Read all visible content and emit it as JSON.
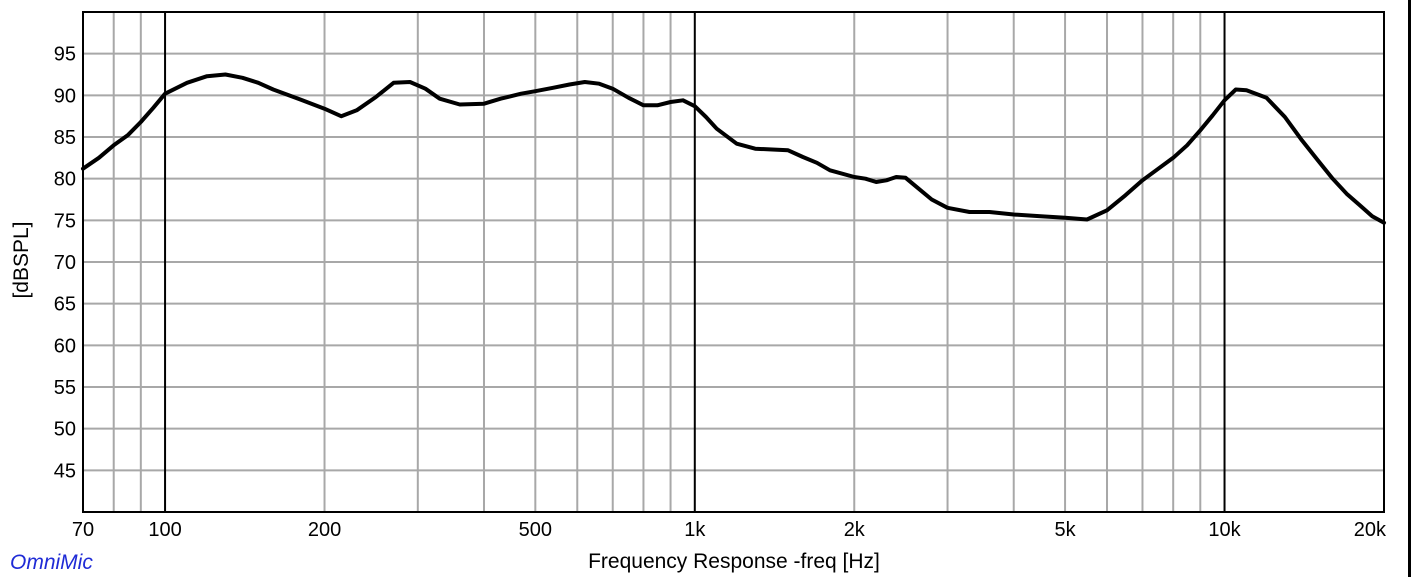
{
  "brand": "OmniMic",
  "chart_data": {
    "type": "line",
    "title": "",
    "xlabel": "Frequency Response -freq [Hz]",
    "ylabel": "[dBSPL]",
    "xscale": "log",
    "xlim": [
      70,
      20000
    ],
    "ylim": [
      40,
      100
    ],
    "grid": true,
    "x_ticks": [
      {
        "value": 70,
        "label": "70"
      },
      {
        "value": 100,
        "label": "100"
      },
      {
        "value": 200,
        "label": "200"
      },
      {
        "value": 500,
        "label": "500"
      },
      {
        "value": 1000,
        "label": "1k"
      },
      {
        "value": 2000,
        "label": "2k"
      },
      {
        "value": 5000,
        "label": "5k"
      },
      {
        "value": 10000,
        "label": "10k"
      },
      {
        "value": 20000,
        "label": "20k"
      }
    ],
    "y_ticks": [
      45,
      50,
      55,
      60,
      65,
      70,
      75,
      80,
      85,
      90,
      95
    ],
    "series": [
      {
        "color": "#000000",
        "x": [
          70,
          75,
          80,
          85,
          90,
          95,
          100,
          110,
          120,
          130,
          140,
          150,
          160,
          180,
          200,
          215,
          230,
          250,
          270,
          290,
          310,
          330,
          360,
          400,
          430,
          470,
          500,
          540,
          580,
          620,
          660,
          700,
          750,
          800,
          850,
          900,
          950,
          1000,
          1050,
          1100,
          1200,
          1300,
          1400,
          1500,
          1600,
          1700,
          1800,
          2000,
          2100,
          2200,
          2300,
          2400,
          2500,
          2600,
          2800,
          3000,
          3300,
          3600,
          4000,
          4500,
          5000,
          5500,
          6000,
          6500,
          7000,
          7500,
          8000,
          8500,
          9000,
          9500,
          10000,
          10500,
          11000,
          12000,
          13000,
          14000,
          15000,
          16000,
          17000,
          18000,
          19000,
          20000
        ],
        "y": [
          81.2,
          82.5,
          84.0,
          85.2,
          86.8,
          88.5,
          90.2,
          91.5,
          92.3,
          92.5,
          92.1,
          91.5,
          90.7,
          89.5,
          88.4,
          87.5,
          88.2,
          89.8,
          91.5,
          91.6,
          90.8,
          89.6,
          88.9,
          89.0,
          89.6,
          90.2,
          90.5,
          90.9,
          91.3,
          91.6,
          91.4,
          90.8,
          89.7,
          88.8,
          88.8,
          89.2,
          89.4,
          88.7,
          87.4,
          86.0,
          84.2,
          83.6,
          83.5,
          83.4,
          82.6,
          81.9,
          81.0,
          80.2,
          80.0,
          79.6,
          79.8,
          80.2,
          80.1,
          79.2,
          77.5,
          76.5,
          76.0,
          76.0,
          75.7,
          75.5,
          75.3,
          75.1,
          76.2,
          78.0,
          79.8,
          81.2,
          82.5,
          84.0,
          85.8,
          87.6,
          89.4,
          90.7,
          90.6,
          89.7,
          87.4,
          84.6,
          82.2,
          80.0,
          78.2,
          76.8,
          75.5,
          74.7
        ]
      }
    ]
  }
}
